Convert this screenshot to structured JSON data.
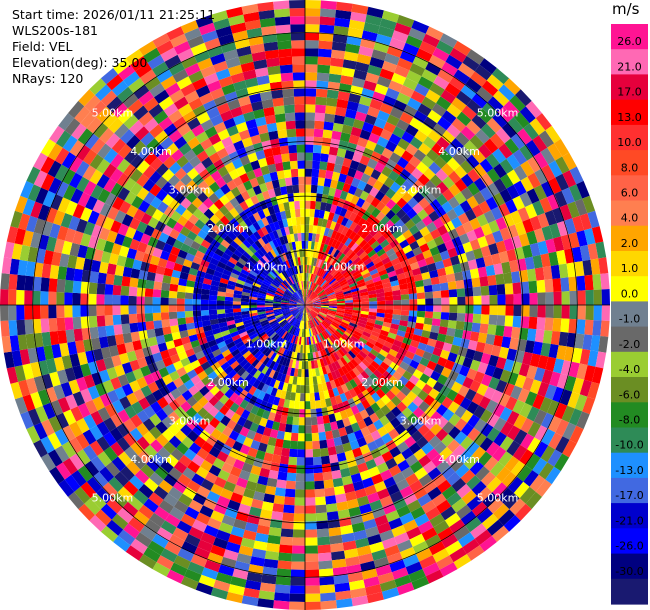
{
  "header": {
    "start_time": "Start time: 2026/01/11 21:25:11",
    "instrument": "WLS200s-181",
    "field": "Field: VEL",
    "elevation": "Elevation(deg): 35.00",
    "nrays": "NRays: 120"
  },
  "chart_data": {
    "type": "heatmap",
    "projection": "polar-ppi",
    "n_rays": 120,
    "ring_labels": [
      "1.00km",
      "2.00km",
      "3.00km",
      "4.00km",
      "5.00km"
    ],
    "max_range_km": 5.6,
    "grid": true,
    "colorbar": {
      "unit": "m/s",
      "placement": "right",
      "tick_labels": [
        "26.0",
        "21.0",
        "17.0",
        "13.0",
        "10.0",
        "8.0",
        "6.0",
        "4.0",
        "2.0",
        "1.0",
        "0.0",
        "-1.0",
        "-2.0",
        "-4.0",
        "-6.0",
        "-8.0",
        "-10.0",
        "-13.0",
        "-17.0",
        "-21.0",
        "-26.0",
        "-30.0"
      ],
      "colors": [
        "#ff1493",
        "#ff69b4",
        "#e6003c",
        "#ff0000",
        "#ff3030",
        "#ff4a25",
        "#ff6347",
        "#ff7f50",
        "#ffa500",
        "#ffd700",
        "#ffff00",
        "#708090",
        "#696969",
        "#9acd32",
        "#6b8e23",
        "#228b22",
        "#2e8b57",
        "#1e90ff",
        "#4169e1",
        "#0000cd",
        "#0000ff",
        "#000080",
        "#191970"
      ]
    }
  }
}
